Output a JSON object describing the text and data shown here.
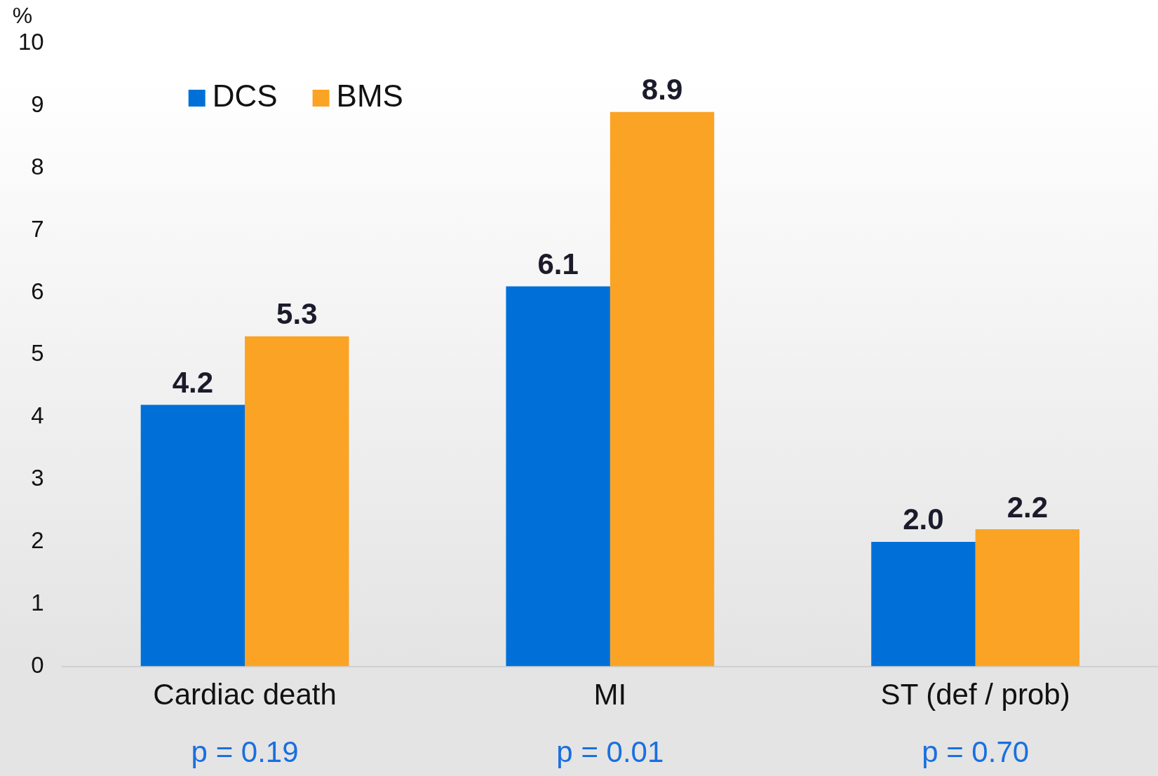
{
  "chart_data": {
    "type": "bar",
    "ylabel": "%",
    "categories": [
      "Cardiac death",
      "MI",
      "ST (def / prob)"
    ],
    "series": [
      {
        "name": "DCS",
        "color": "#0070d8",
        "values": [
          4.2,
          6.1,
          2.0
        ],
        "value_labels": [
          "4.2",
          "6.1",
          "2.0"
        ]
      },
      {
        "name": "BMS",
        "color": "#fba324",
        "values": [
          5.3,
          8.9,
          2.2
        ],
        "value_labels": [
          "5.3",
          "8.9",
          "2.2"
        ]
      }
    ],
    "ylim": [
      0,
      10
    ],
    "yticks": [
      0,
      1,
      2,
      3,
      4,
      5,
      6,
      7,
      8,
      9,
      10
    ],
    "grid": false,
    "legend": "top left",
    "annotations": [
      "p = 0.19",
      "p = 0.01",
      "p = 0.70"
    ]
  }
}
